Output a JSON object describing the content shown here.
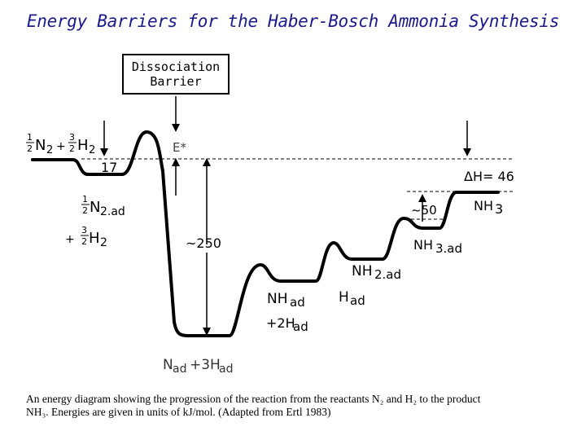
{
  "title": "Energy Barriers for the Haber-Bosch Ammonia Synthesis",
  "callout": {
    "line1": "Dissociation",
    "line2": "Barrier"
  },
  "labels": {
    "estar": "E*",
    "e17": "17",
    "dh": "ΔH= 46",
    "e50": "~50",
    "e250": "~250",
    "nh3": "NH",
    "nh3_sub": "3",
    "nh3ad": "NH",
    "nh3ad_sub": "3.ad",
    "nh2ad": "NH",
    "nh2ad_sub": "2.ad",
    "had": "H",
    "had_sub": "ad",
    "nhad": "NH",
    "nhad_sub": "ad",
    "plus2h": "+2H",
    "plus2h_sub": "ad",
    "nad": "N",
    "nad_sub": "ad",
    "plus3h": "+3H",
    "plus3h_sub": "ad",
    "react_frac1_num": "1",
    "react_frac1_den": "2",
    "react_n2": "N",
    "react_n2_sub": "2",
    "react_plus": "+",
    "react_frac2_num": "3",
    "react_frac2_den": "2",
    "react_h2": "H",
    "react_h2_sub": "2",
    "ads_frac1_num": "1",
    "ads_frac1_den": "2",
    "ads_n2": "N",
    "ads_n2_sub": "2.ad",
    "ads_plus": "+",
    "ads_frac2_num": "3",
    "ads_frac2_den": "2",
    "ads_h2": "H",
    "ads_h2_sub": "2"
  },
  "caption": {
    "line1": "An energy diagram showing the progression of the reaction from the reactants N₂ and H₂ to the product",
    "line2": "NH₃. Energies are given in units of kJ/mol. (Adapted from Ertl 1983)"
  }
}
